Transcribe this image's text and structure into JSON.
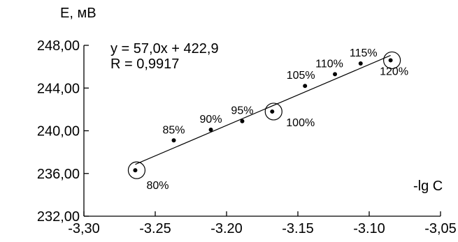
{
  "chart_data": {
    "type": "scatter",
    "title": "",
    "xlabel": "-lg C",
    "ylabel": "E, мВ",
    "xlim": [
      -3.3,
      -3.05
    ],
    "ylim": [
      232,
      248
    ],
    "x_ticks": [
      -3.3,
      -3.25,
      -3.2,
      -3.15,
      -3.1,
      -3.05
    ],
    "x_tick_labels": [
      "-3,30",
      "-3.25",
      "-3.20",
      "-3.15",
      "-3.10",
      "-3,05"
    ],
    "y_ticks": [
      232,
      236,
      240,
      244,
      248
    ],
    "y_tick_labels": [
      "232,00",
      "236,00",
      "240,00",
      "244,00",
      "248,00"
    ],
    "grid": false,
    "series": [
      {
        "points": [
          {
            "x": -3.264,
            "y": 236.3,
            "label": "80%",
            "circled": true
          },
          {
            "x": -3.237,
            "y": 239.1,
            "label": "85%"
          },
          {
            "x": -3.211,
            "y": 240.1,
            "label": "90%"
          },
          {
            "x": -3.189,
            "y": 240.9,
            "label": "95%"
          },
          {
            "x": -3.168,
            "y": 241.8,
            "label": "100%",
            "circled": true
          },
          {
            "x": -3.145,
            "y": 244.2,
            "label": "105%"
          },
          {
            "x": -3.124,
            "y": 245.3,
            "label": "110%"
          },
          {
            "x": -3.106,
            "y": 246.3,
            "label": "115%"
          },
          {
            "x": -3.085,
            "y": 246.6,
            "label": "120%",
            "circled": true
          }
        ]
      }
    ],
    "trendline": {
      "slope": 57.0,
      "intercept": 422.9
    },
    "annotations": {
      "equation": "y = 57,0x + 422,9",
      "r": "R = 0,9917"
    }
  }
}
